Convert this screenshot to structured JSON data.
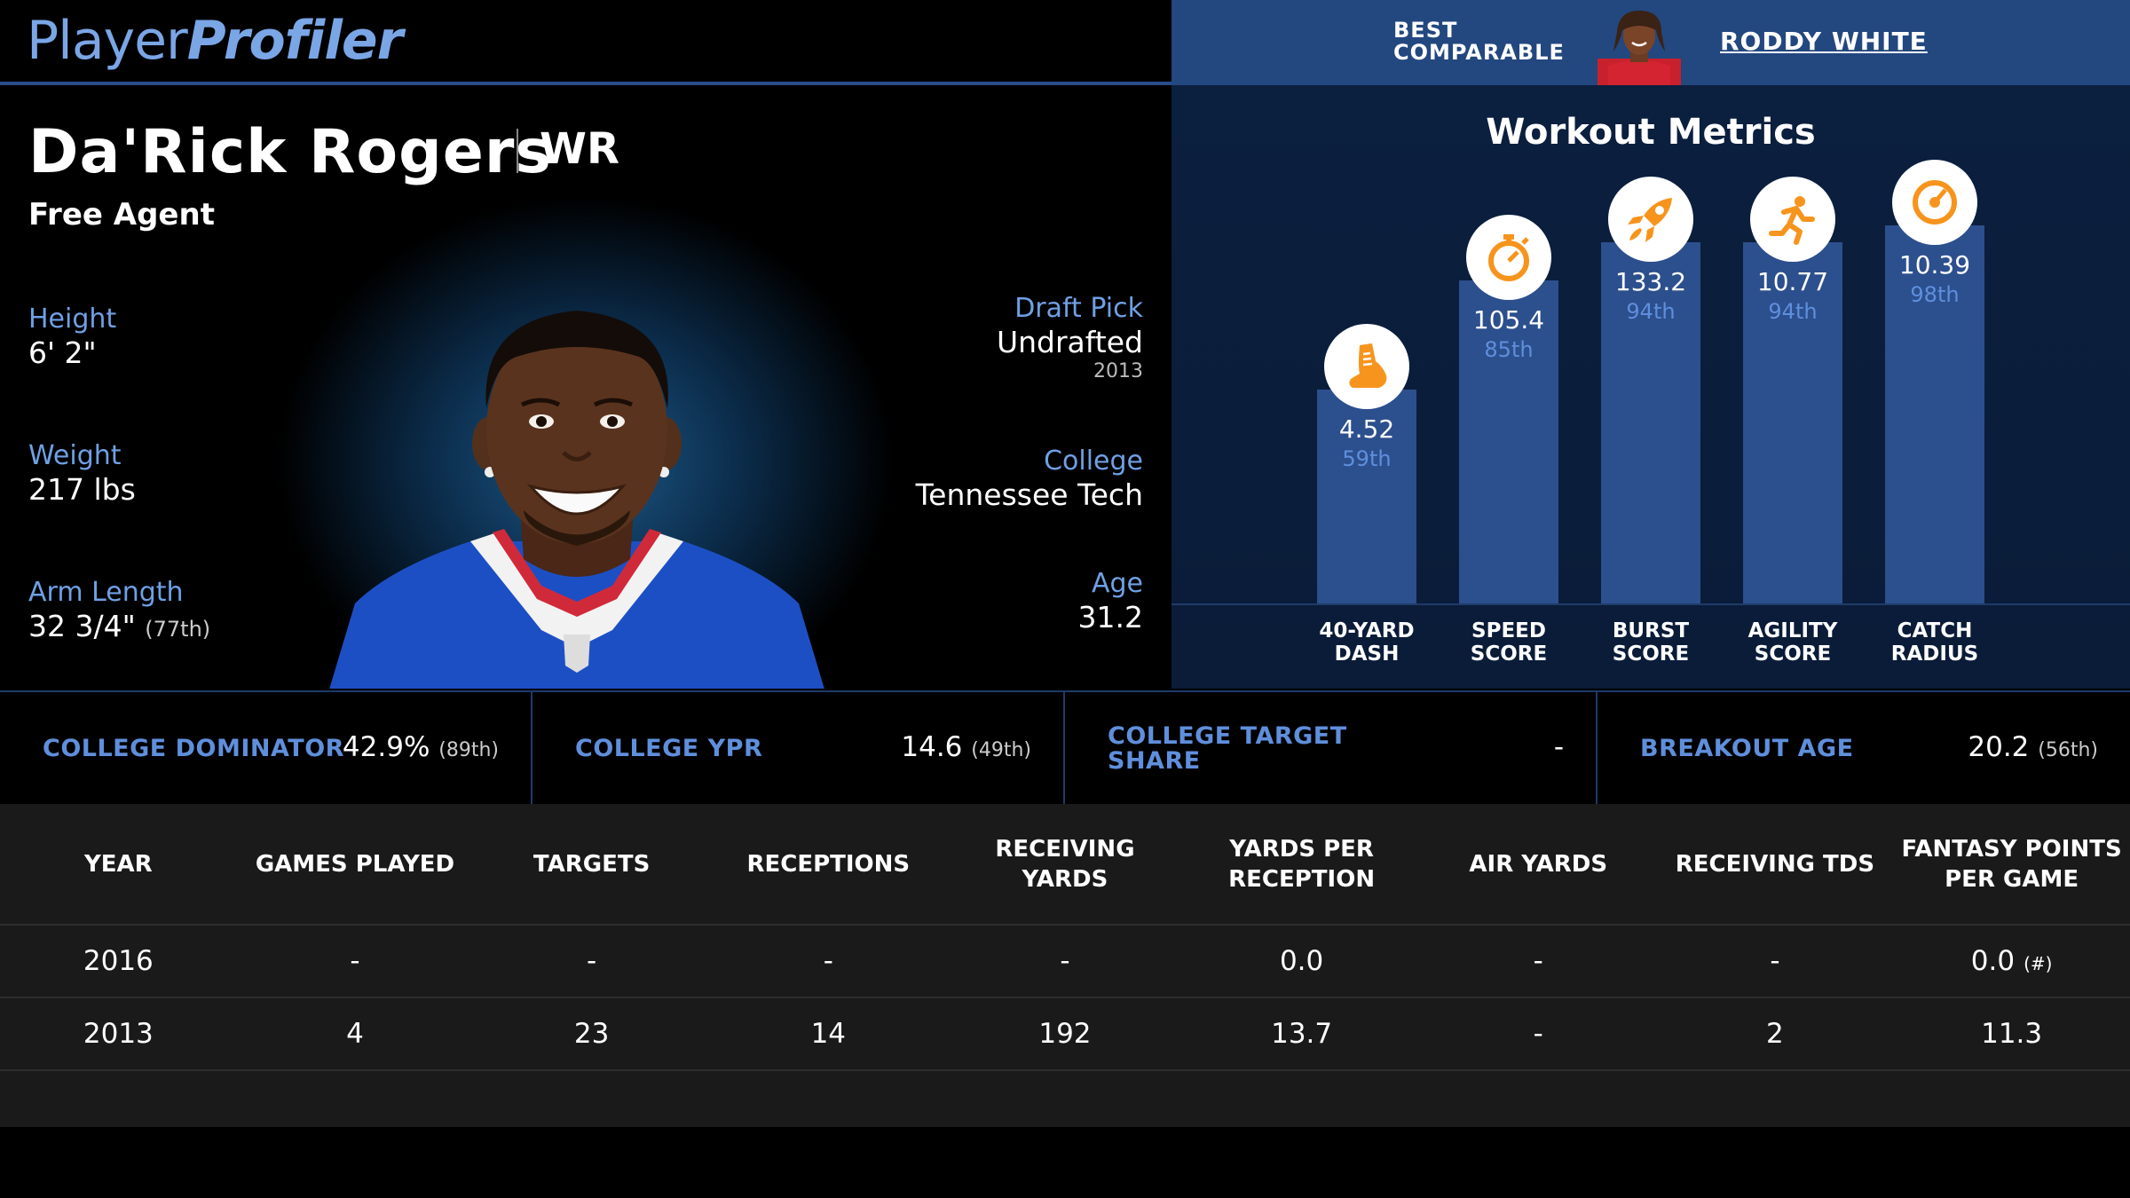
{
  "logo": {
    "part1": "Player",
    "part2": "Profiler"
  },
  "comparable": {
    "label_line1": "BEST",
    "label_line2": "COMPARABLE",
    "name": "RODDY WHITE"
  },
  "player": {
    "name": "Da'Rick Rogers",
    "position": "WR",
    "team": "Free Agent",
    "height_label": "Height",
    "height": "6' 2\"",
    "weight_label": "Weight",
    "weight": "217 lbs",
    "arm_label": "Arm Length",
    "arm": "32 3/4\"",
    "arm_pct": "(77th)",
    "draft_label": "Draft Pick",
    "draft": "Undrafted",
    "draft_year": "2013",
    "college_label": "College",
    "college": "Tennessee Tech",
    "age_label": "Age",
    "age": "31.2"
  },
  "workout": {
    "title": "Workout Metrics",
    "accent_color": "#f7941d",
    "metrics": [
      {
        "label1": "40-YARD",
        "label2": "DASH",
        "value": "4.52",
        "pct": "59th",
        "icon": "shoe-icon",
        "percentile": 59
      },
      {
        "label1": "SPEED",
        "label2": "SCORE",
        "value": "105.4",
        "pct": "85th",
        "icon": "stopwatch-icon",
        "percentile": 85
      },
      {
        "label1": "BURST",
        "label2": "SCORE",
        "value": "133.2",
        "pct": "94th",
        "icon": "rocket-icon",
        "percentile": 94
      },
      {
        "label1": "AGILITY",
        "label2": "SCORE",
        "value": "10.77",
        "pct": "94th",
        "icon": "runner-icon",
        "percentile": 94
      },
      {
        "label1": "CATCH",
        "label2": "RADIUS",
        "value": "10.39",
        "pct": "98th",
        "icon": "target-icon",
        "percentile": 98
      }
    ]
  },
  "college_stats": [
    {
      "label1": "COLLEGE DOMINATOR",
      "label2": "",
      "value": "42.9%",
      "pct": "(89th)"
    },
    {
      "label1": "COLLEGE YPR",
      "label2": "",
      "value": "14.6",
      "pct": "(49th)"
    },
    {
      "label1": "COLLEGE TARGET",
      "label2": "SHARE",
      "value": "-",
      "pct": ""
    },
    {
      "label1": "BREAKOUT AGE",
      "label2": "",
      "value": "20.2",
      "pct": "(56th)"
    }
  ],
  "table": {
    "headers": [
      "YEAR",
      "GAMES PLAYED",
      "TARGETS",
      "RECEPTIONS",
      "RECEIVING YARDS",
      "YARDS PER RECEPTION",
      "AIR YARDS",
      "RECEIVING TDS",
      "FANTASY POINTS PER GAME"
    ],
    "rows": [
      [
        "2016",
        "-",
        "-",
        "-",
        "-",
        "0.0",
        "-",
        "-",
        "0.0"
      ],
      [
        "2013",
        "4",
        "23",
        "14",
        "192",
        "13.7",
        "-",
        "2",
        "11.3"
      ]
    ],
    "rank_note": "(#)"
  }
}
